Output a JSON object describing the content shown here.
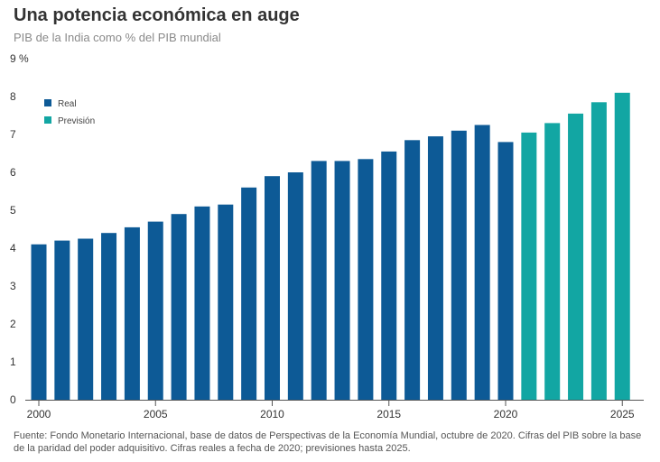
{
  "header": {
    "title": "Una potencia económica en auge",
    "subtitle": "PIB de la India como % del PIB mundial"
  },
  "footnote": "Fuente: Fondo Monetario Internacional, base de datos de Perspectivas de la Economía Mundial, octubre de 2020. Cifras del PIB sobre la base de la paridad del poder adquisitivo. Cifras reales a fecha de 2020; previsiones hasta 2025.",
  "colors": {
    "real": "#0d5a96",
    "prevision": "#12a6a3"
  },
  "chart_data": {
    "type": "bar",
    "title": "Una potencia económica en auge",
    "subtitle": "PIB de la India como % del PIB mundial",
    "xlabel": "",
    "ylabel": "",
    "ylim": [
      0,
      9
    ],
    "y_ticks": [
      "0",
      "1",
      "2",
      "3",
      "4",
      "5",
      "6",
      "7",
      "8",
      "9 %"
    ],
    "x_ticks": [
      "2000",
      "2005",
      "2010",
      "2015",
      "2020",
      "2025"
    ],
    "legend_position": "top-left",
    "series": [
      {
        "name": "Real",
        "color": "#0d5a96",
        "categories": [
          2000,
          2001,
          2002,
          2003,
          2004,
          2005,
          2006,
          2007,
          2008,
          2009,
          2010,
          2011,
          2012,
          2013,
          2014,
          2015,
          2016,
          2017,
          2018,
          2019,
          2020
        ],
        "values": [
          4.1,
          4.2,
          4.25,
          4.4,
          4.55,
          4.7,
          4.9,
          5.1,
          5.15,
          5.6,
          5.9,
          6.0,
          6.3,
          6.3,
          6.35,
          6.55,
          6.85,
          6.95,
          7.1,
          7.25,
          6.8
        ]
      },
      {
        "name": "Previsión",
        "color": "#12a6a3",
        "categories": [
          2021,
          2022,
          2023,
          2024,
          2025
        ],
        "values": [
          7.05,
          7.3,
          7.55,
          7.85,
          8.1
        ]
      }
    ]
  }
}
